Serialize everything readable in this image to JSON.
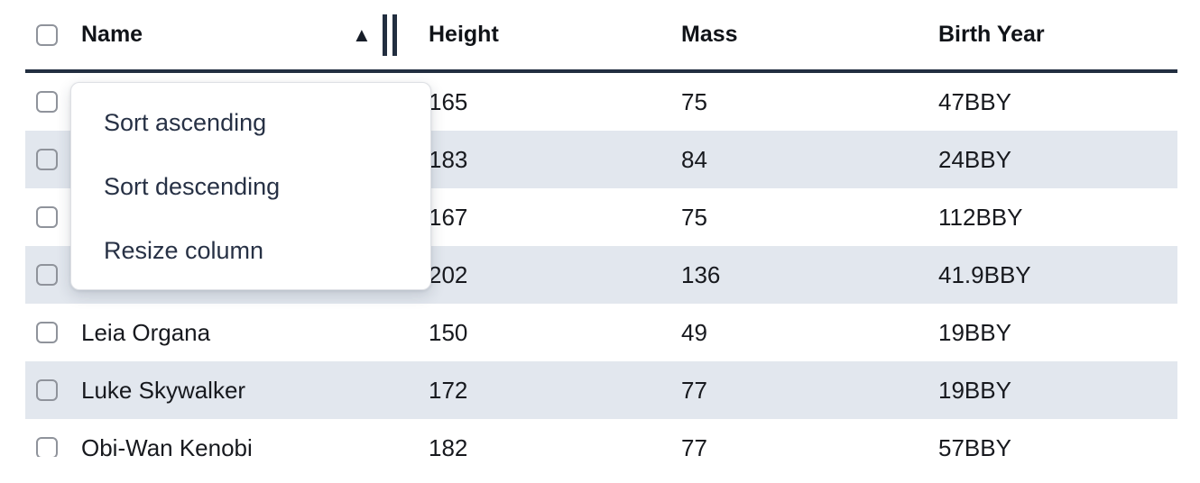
{
  "colors": {
    "navy": "#222e40",
    "stripe": "#e2e7ee",
    "cell_text": "#17191e",
    "header_text": "#101318",
    "menu_text": "#273145",
    "checkbox_border": "#8f939b",
    "menu_border": "#dee0e5",
    "page_bg": "#ffffff"
  },
  "icons": {
    "sort_ascending_indicator": "▲"
  },
  "table": {
    "columns": [
      {
        "label": "Name",
        "sort": "ascending"
      },
      {
        "label": "Height"
      },
      {
        "label": "Mass"
      },
      {
        "label": "Birth Year"
      }
    ],
    "rows": [
      {
        "name": "",
        "height": "165",
        "mass": "75",
        "birth_year": "47BBY",
        "selected": false
      },
      {
        "name": "",
        "height": "183",
        "mass": "84",
        "birth_year": "24BBY",
        "selected": false
      },
      {
        "name": "",
        "height": "167",
        "mass": "75",
        "birth_year": "112BBY",
        "selected": false
      },
      {
        "name": "",
        "height": "202",
        "mass": "136",
        "birth_year": "41.9BBY",
        "selected": false
      },
      {
        "name": "Leia Organa",
        "height": "150",
        "mass": "49",
        "birth_year": "19BBY",
        "selected": false
      },
      {
        "name": "Luke Skywalker",
        "height": "172",
        "mass": "77",
        "birth_year": "19BBY",
        "selected": false
      },
      {
        "name": "Obi-Wan Kenobi",
        "height": "182",
        "mass": "77",
        "birth_year": "57BBY",
        "selected": false
      }
    ]
  },
  "column_menu": {
    "items": [
      {
        "label": "Sort ascending"
      },
      {
        "label": "Sort descending"
      },
      {
        "label": "Resize column"
      }
    ]
  }
}
